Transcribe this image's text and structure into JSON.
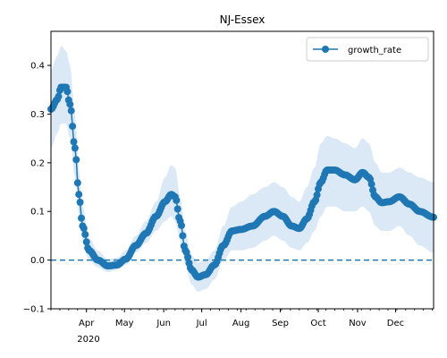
{
  "chart_data": {
    "type": "line",
    "title": "NJ-Essex",
    "xlabel": "",
    "ylabel": "",
    "x_range": [
      "2020-03-04",
      "2020-12-31"
    ],
    "ylim": [
      -0.1,
      0.47
    ],
    "yticks": [
      -0.1,
      0.0,
      0.1,
      0.2,
      0.3,
      0.4
    ],
    "ytick_labels": [
      "−0.1",
      "0.0",
      "0.1",
      "0.2",
      "0.3",
      "0.4"
    ],
    "xticks": [
      {
        "date": "2020-04-01",
        "label": "Apr"
      },
      {
        "date": "2020-05-01",
        "label": "May"
      },
      {
        "date": "2020-06-01",
        "label": "Jun"
      },
      {
        "date": "2020-07-01",
        "label": "Jul"
      },
      {
        "date": "2020-08-01",
        "label": "Aug"
      },
      {
        "date": "2020-09-01",
        "label": "Sep"
      },
      {
        "date": "2020-10-01",
        "label": "Oct"
      },
      {
        "date": "2020-11-01",
        "label": "Nov"
      },
      {
        "date": "2020-12-01",
        "label": "Dec"
      }
    ],
    "year_label": "2020",
    "grid": false,
    "legend_position": "top-right",
    "reference_line": {
      "y": 0.0,
      "style": "dashed"
    },
    "series": [
      {
        "name": "growth_rate",
        "color": "#1f77b4",
        "band_color": "#dbe9f6",
        "keypoints": [
          {
            "date": "2020-03-04",
            "y": 0.31,
            "lo": 0.23,
            "hi": 0.39
          },
          {
            "date": "2020-03-09",
            "y": 0.33,
            "lo": 0.26,
            "hi": 0.42
          },
          {
            "date": "2020-03-12",
            "y": 0.355,
            "lo": 0.28,
            "hi": 0.44
          },
          {
            "date": "2020-03-16",
            "y": 0.355,
            "lo": 0.28,
            "hi": 0.43
          },
          {
            "date": "2020-03-19",
            "y": 0.32,
            "lo": 0.25,
            "hi": 0.4
          },
          {
            "date": "2020-03-23",
            "y": 0.23,
            "lo": 0.17,
            "hi": 0.3
          },
          {
            "date": "2020-03-26",
            "y": 0.135,
            "lo": 0.09,
            "hi": 0.19
          },
          {
            "date": "2020-03-29",
            "y": 0.07,
            "lo": 0.04,
            "hi": 0.11
          },
          {
            "date": "2020-04-03",
            "y": 0.02,
            "lo": 0.0,
            "hi": 0.045
          },
          {
            "date": "2020-04-10",
            "y": 0.0,
            "lo": -0.015,
            "hi": 0.02
          },
          {
            "date": "2020-04-18",
            "y": -0.012,
            "lo": -0.025,
            "hi": 0.002
          },
          {
            "date": "2020-04-25",
            "y": -0.01,
            "lo": -0.02,
            "hi": 0.005
          },
          {
            "date": "2020-05-02",
            "y": 0.002,
            "lo": -0.01,
            "hi": 0.02
          },
          {
            "date": "2020-05-10",
            "y": 0.03,
            "lo": 0.015,
            "hi": 0.05
          },
          {
            "date": "2020-05-18",
            "y": 0.055,
            "lo": 0.035,
            "hi": 0.08
          },
          {
            "date": "2020-05-26",
            "y": 0.09,
            "lo": 0.06,
            "hi": 0.12
          },
          {
            "date": "2020-06-02",
            "y": 0.12,
            "lo": 0.08,
            "hi": 0.17
          },
          {
            "date": "2020-06-07",
            "y": 0.135,
            "lo": 0.09,
            "hi": 0.195
          },
          {
            "date": "2020-06-10",
            "y": 0.13,
            "lo": 0.08,
            "hi": 0.19
          },
          {
            "date": "2020-06-14",
            "y": 0.08,
            "lo": 0.04,
            "hi": 0.13
          },
          {
            "date": "2020-06-18",
            "y": 0.02,
            "lo": -0.01,
            "hi": 0.06
          },
          {
            "date": "2020-06-23",
            "y": -0.02,
            "lo": -0.05,
            "hi": 0.01
          },
          {
            "date": "2020-06-28",
            "y": -0.035,
            "lo": -0.065,
            "hi": -0.005
          },
          {
            "date": "2020-07-04",
            "y": -0.03,
            "lo": -0.06,
            "hi": 0.0
          },
          {
            "date": "2020-07-11",
            "y": -0.01,
            "lo": -0.04,
            "hi": 0.02
          },
          {
            "date": "2020-07-18",
            "y": 0.03,
            "lo": 0.0,
            "hi": 0.07
          },
          {
            "date": "2020-07-25",
            "y": 0.06,
            "lo": 0.02,
            "hi": 0.11
          },
          {
            "date": "2020-08-01",
            "y": 0.063,
            "lo": 0.02,
            "hi": 0.12
          },
          {
            "date": "2020-08-10",
            "y": 0.07,
            "lo": 0.025,
            "hi": 0.135
          },
          {
            "date": "2020-08-20",
            "y": 0.09,
            "lo": 0.04,
            "hi": 0.15
          },
          {
            "date": "2020-08-27",
            "y": 0.1,
            "lo": 0.05,
            "hi": 0.16
          },
          {
            "date": "2020-09-03",
            "y": 0.09,
            "lo": 0.04,
            "hi": 0.15
          },
          {
            "date": "2020-09-10",
            "y": 0.07,
            "lo": 0.025,
            "hi": 0.13
          },
          {
            "date": "2020-09-16",
            "y": 0.065,
            "lo": 0.02,
            "hi": 0.12
          },
          {
            "date": "2020-09-22",
            "y": 0.085,
            "lo": 0.035,
            "hi": 0.15
          },
          {
            "date": "2020-09-28",
            "y": 0.12,
            "lo": 0.06,
            "hi": 0.19
          },
          {
            "date": "2020-10-03",
            "y": 0.16,
            "lo": 0.09,
            "hi": 0.24
          },
          {
            "date": "2020-10-08",
            "y": 0.185,
            "lo": 0.11,
            "hi": 0.255
          },
          {
            "date": "2020-10-14",
            "y": 0.185,
            "lo": 0.11,
            "hi": 0.25
          },
          {
            "date": "2020-10-22",
            "y": 0.175,
            "lo": 0.1,
            "hi": 0.24
          },
          {
            "date": "2020-10-30",
            "y": 0.165,
            "lo": 0.1,
            "hi": 0.23
          },
          {
            "date": "2020-11-05",
            "y": 0.18,
            "lo": 0.11,
            "hi": 0.25
          },
          {
            "date": "2020-11-10",
            "y": 0.17,
            "lo": 0.1,
            "hi": 0.24
          },
          {
            "date": "2020-11-15",
            "y": 0.13,
            "lo": 0.07,
            "hi": 0.2
          },
          {
            "date": "2020-11-20",
            "y": 0.118,
            "lo": 0.06,
            "hi": 0.18
          },
          {
            "date": "2020-11-26",
            "y": 0.12,
            "lo": 0.06,
            "hi": 0.18
          },
          {
            "date": "2020-12-04",
            "y": 0.13,
            "lo": 0.07,
            "hi": 0.19
          },
          {
            "date": "2020-12-12",
            "y": 0.115,
            "lo": 0.05,
            "hi": 0.18
          },
          {
            "date": "2020-12-20",
            "y": 0.1,
            "lo": 0.03,
            "hi": 0.17
          },
          {
            "date": "2020-12-31",
            "y": 0.088,
            "lo": 0.015,
            "hi": 0.16
          }
        ]
      }
    ]
  }
}
